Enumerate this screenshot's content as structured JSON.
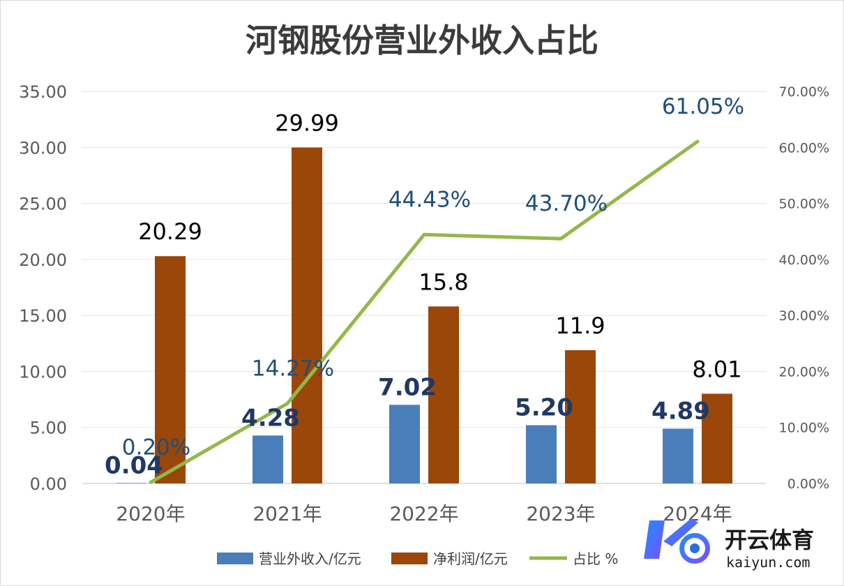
{
  "chart_data": {
    "type": "bar",
    "title": "河钢股份营业外收入占比",
    "categories": [
      "2020年",
      "2021年",
      "2022年",
      "2023年",
      "2024年"
    ],
    "series": [
      {
        "name": "营业外收入/亿元",
        "type": "bar",
        "axis": "left",
        "color": "#4a7ebb",
        "values": [
          0.04,
          4.28,
          7.02,
          5.2,
          4.89
        ],
        "labels": [
          "0.04",
          "4.28",
          "7.02",
          "5.20",
          "4.89"
        ]
      },
      {
        "name": "净利润/亿元",
        "type": "bar",
        "axis": "left",
        "color": "#9a4709",
        "values": [
          20.29,
          29.99,
          15.8,
          11.9,
          8.01
        ],
        "labels": [
          "20.29",
          "29.99",
          "15.8",
          "11.9",
          "8.01"
        ]
      },
      {
        "name": "占比 %",
        "type": "line",
        "axis": "right",
        "color": "#92b84a",
        "values": [
          0.2,
          14.27,
          44.43,
          43.7,
          61.05
        ],
        "labels": [
          "0.20%",
          "14.27%",
          "44.43%",
          "43.70%",
          "61.05%"
        ]
      }
    ],
    "y_left": {
      "ylim": [
        0,
        35
      ],
      "ticks": [
        "0.00",
        "5.00",
        "10.00",
        "15.00",
        "20.00",
        "25.00",
        "30.00",
        "35.00"
      ]
    },
    "y_right": {
      "ylim": [
        0,
        70
      ],
      "ticks": [
        "0.00%",
        "10.00%",
        "20.00%",
        "30.00%",
        "40.00%",
        "50.00%",
        "60.00%",
        "70.00%"
      ]
    },
    "grid": true,
    "legend_position": "bottom"
  },
  "watermark": {
    "brand": "开云体育",
    "domain": "kaiyun.com",
    "colors": [
      "#1e90ff",
      "#7b4dff"
    ]
  }
}
